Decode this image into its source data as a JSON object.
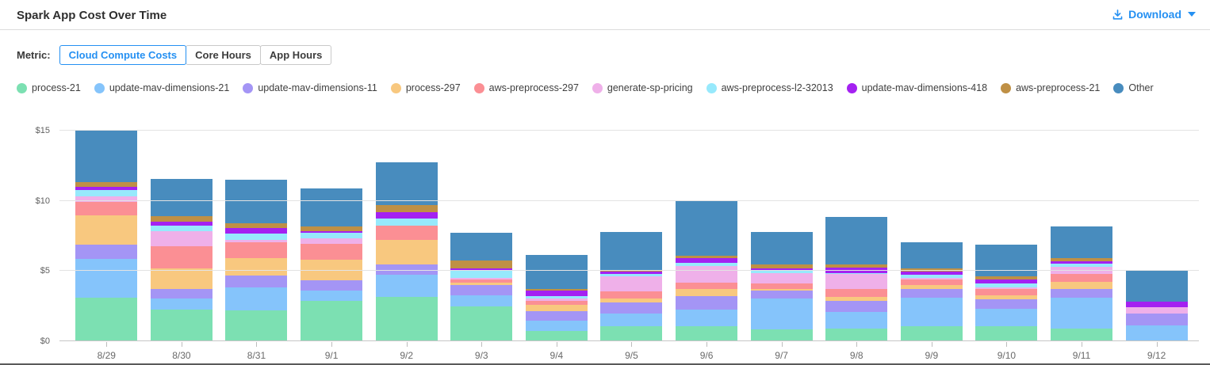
{
  "header": {
    "title": "Spark App Cost Over Time",
    "download_label": "Download"
  },
  "metric": {
    "label": "Metric:",
    "options": [
      "Cloud Compute Costs",
      "Core Hours",
      "App Hours"
    ],
    "selected": "Cloud Compute Costs"
  },
  "colors": {
    "accent_blue": "#2590f2",
    "grid_line": "#e3e3e3",
    "axis_line": "#c6c6c6"
  },
  "chart_data": {
    "type": "bar",
    "stacked": true,
    "title": "Spark App Cost Over Time",
    "xlabel": "",
    "ylabel": "Cloud Compute Costs ($)",
    "ylim": [
      0,
      15
    ],
    "grid": true,
    "legend_position": "top",
    "y_ticks": [
      {
        "label": "$0",
        "value": 0
      },
      {
        "label": "$5",
        "value": 5
      },
      {
        "label": "$10",
        "value": 10
      },
      {
        "label": "$15",
        "value": 15
      }
    ],
    "categories": [
      "8/29",
      "8/30",
      "8/31",
      "9/1",
      "9/2",
      "9/3",
      "9/4",
      "9/5",
      "9/6",
      "9/7",
      "9/8",
      "9/9",
      "9/10",
      "9/11",
      "9/12"
    ],
    "series": [
      {
        "name": "process-21",
        "color": "#7ce0b2",
        "values": [
          3.1,
          2.25,
          2.2,
          2.9,
          3.15,
          2.5,
          0.75,
          1.05,
          1.05,
          0.85,
          0.9,
          1.05,
          1.05,
          0.9,
          0
        ]
      },
      {
        "name": "update-mav-dimensions-21",
        "color": "#85c4fb",
        "values": [
          2.75,
          0.8,
          1.65,
          0.7,
          1.6,
          0.8,
          0.7,
          0.95,
          1.2,
          2.2,
          1.2,
          2.05,
          1.25,
          2.2,
          1.15
        ]
      },
      {
        "name": "update-mav-dimensions-11",
        "color": "#a495f5",
        "values": [
          1.05,
          0.7,
          0.85,
          0.75,
          0.7,
          0.7,
          0.7,
          0.75,
          0.95,
          0.55,
          0.75,
          0.65,
          0.7,
          0.6,
          0.85
        ]
      },
      {
        "name": "process-297",
        "color": "#f8c87f",
        "values": [
          2.05,
          1.45,
          1.2,
          1.45,
          1.75,
          0.2,
          0.45,
          0.3,
          0.55,
          0.1,
          0.3,
          0.25,
          0.25,
          0.55,
          0
        ]
      },
      {
        "name": "aws-preprocess-297",
        "color": "#fb8f94",
        "values": [
          0.95,
          1.55,
          1.15,
          1.15,
          1.05,
          0.2,
          0.3,
          0.5,
          0.45,
          0.4,
          0.55,
          0.4,
          0.45,
          0.55,
          0
        ]
      },
      {
        "name": "generate-sp-pricing",
        "color": "#efb0e9",
        "values": [
          0.45,
          1.1,
          0.15,
          0.4,
          0,
          0.1,
          0.15,
          1.05,
          1.15,
          0.75,
          1.1,
          0.1,
          0.15,
          0.5,
          0.45
        ]
      },
      {
        "name": "aws-preprocess-l2-32013",
        "color": "#97e9fc",
        "values": [
          0.45,
          0.4,
          0.45,
          0.4,
          0.5,
          0.5,
          0.15,
          0.2,
          0.25,
          0.2,
          0.05,
          0.25,
          0.25,
          0.25,
          0
        ]
      },
      {
        "name": "update-mav-dimensions-418",
        "color": "#a421f1",
        "values": [
          0.2,
          0.25,
          0.4,
          0.1,
          0.45,
          0.2,
          0.4,
          0.15,
          0.3,
          0.15,
          0.4,
          0.2,
          0.3,
          0.15,
          0.35
        ]
      },
      {
        "name": "aws-preprocess-21",
        "color": "#bf9045",
        "values": [
          0.35,
          0.4,
          0.35,
          0.35,
          0.5,
          0.55,
          0.15,
          0.15,
          0.2,
          0.25,
          0.25,
          0.25,
          0.25,
          0.25,
          0
        ]
      },
      {
        "name": "Other",
        "color": "#488cbe",
        "values": [
          3.7,
          2.65,
          3.1,
          2.7,
          3.05,
          2.0,
          2.4,
          2.7,
          3.9,
          2.35,
          3.35,
          1.85,
          2.25,
          2.25,
          2.25
        ]
      }
    ]
  }
}
